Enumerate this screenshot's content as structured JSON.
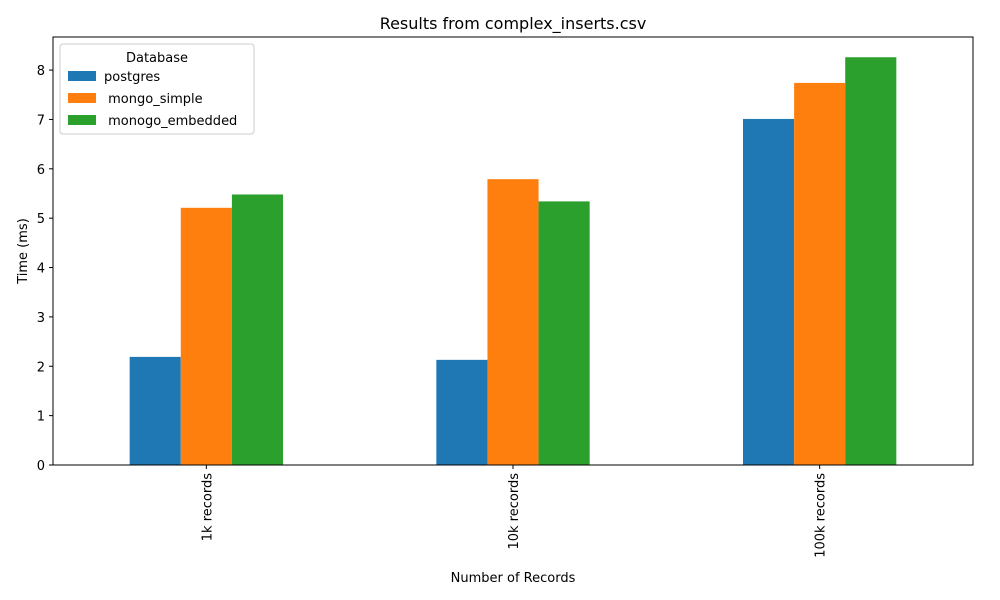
{
  "chart_data": {
    "type": "bar",
    "title": "Results from complex_inserts.csv",
    "xlabel": "Number of Records",
    "ylabel": "Time (ms)",
    "categories": [
      "1k records",
      "10k records",
      "100k records"
    ],
    "series": [
      {
        "name": "postgres",
        "values": [
          2.19,
          2.13,
          7.01
        ],
        "color": "#1f77b4"
      },
      {
        "name": " mongo_simple",
        "values": [
          5.21,
          5.79,
          7.74
        ],
        "color": "#ff7f0e"
      },
      {
        "name": " monogo_embedded",
        "values": [
          5.48,
          5.34,
          8.26
        ],
        "color": "#2ca02c"
      }
    ],
    "ylim": [
      0,
      8.67
    ],
    "yticks": [
      0,
      1,
      2,
      3,
      4,
      5,
      6,
      7,
      8
    ],
    "legend": {
      "title": "Database",
      "placement": "top-left"
    },
    "grid": false
  }
}
